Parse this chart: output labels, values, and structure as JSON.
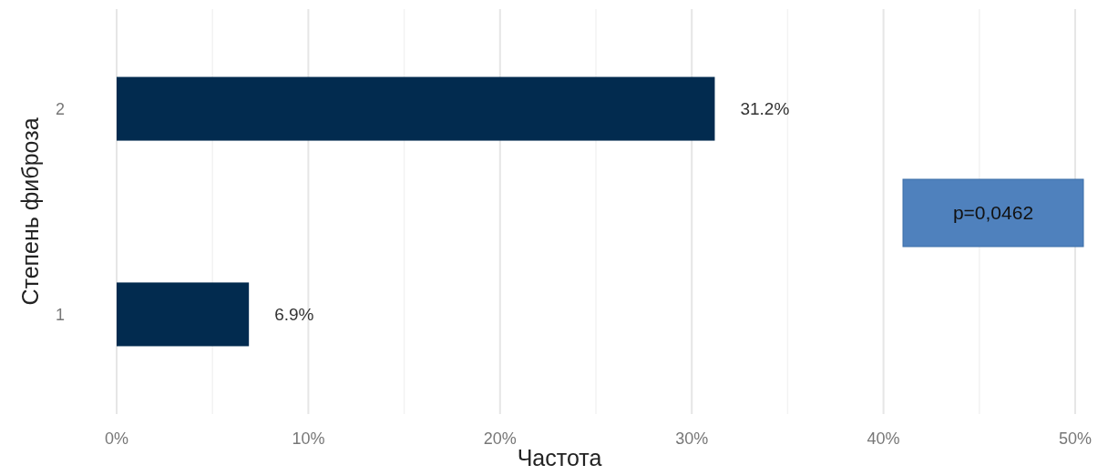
{
  "chart_data": {
    "type": "bar",
    "orientation": "horizontal",
    "categories": [
      "2",
      "1"
    ],
    "values": [
      31.2,
      6.9
    ],
    "color": "#022b4f",
    "value_labels": [
      "31.2%",
      "6.9%"
    ],
    "xlabel": "Частота",
    "ylabel": "Степень фиброза",
    "xlim": [
      0,
      50
    ],
    "xticks": [
      {
        "value": 0,
        "label": "0%"
      },
      {
        "value": 5,
        "label": null
      },
      {
        "value": 10,
        "label": "10%"
      },
      {
        "value": 15,
        "label": null
      },
      {
        "value": 20,
        "label": "20%"
      },
      {
        "value": 25,
        "label": null
      },
      {
        "value": 30,
        "label": "30%"
      },
      {
        "value": 35,
        "label": null
      },
      {
        "value": 40,
        "label": "40%"
      },
      {
        "value": 45,
        "label": null
      },
      {
        "value": 50,
        "label": "50%"
      }
    ],
    "grid": "x",
    "annotations": [
      "p=0,0462"
    ]
  }
}
